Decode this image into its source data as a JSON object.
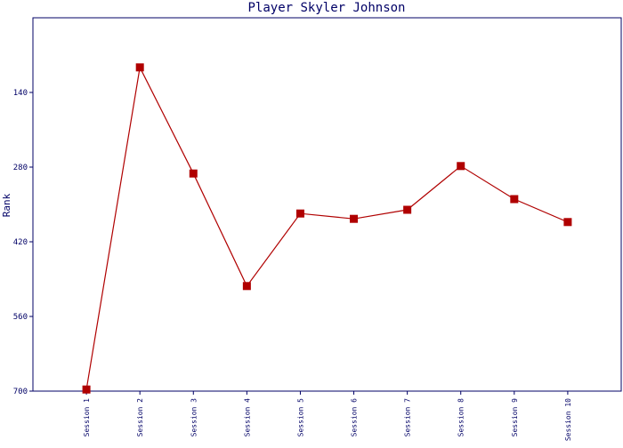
{
  "chart_data": {
    "type": "line",
    "title": "Player Skyler Johnson",
    "y_label": "Rank",
    "categories": [
      "Session 1",
      "Session 2",
      "Session 3",
      "Session 4",
      "Session 5",
      "Session 6",
      "Session 7",
      "Session 8",
      "Session 9",
      "Session 10"
    ],
    "series": [
      {
        "name": "Rank",
        "color": "#b00000",
        "values": [
          697,
          93,
          292,
          503,
          367,
          377,
          360,
          278,
          340,
          383
        ]
      }
    ],
    "ylim": [
      700,
      0
    ],
    "yticks": [
      140,
      280,
      420,
      560,
      700
    ]
  }
}
